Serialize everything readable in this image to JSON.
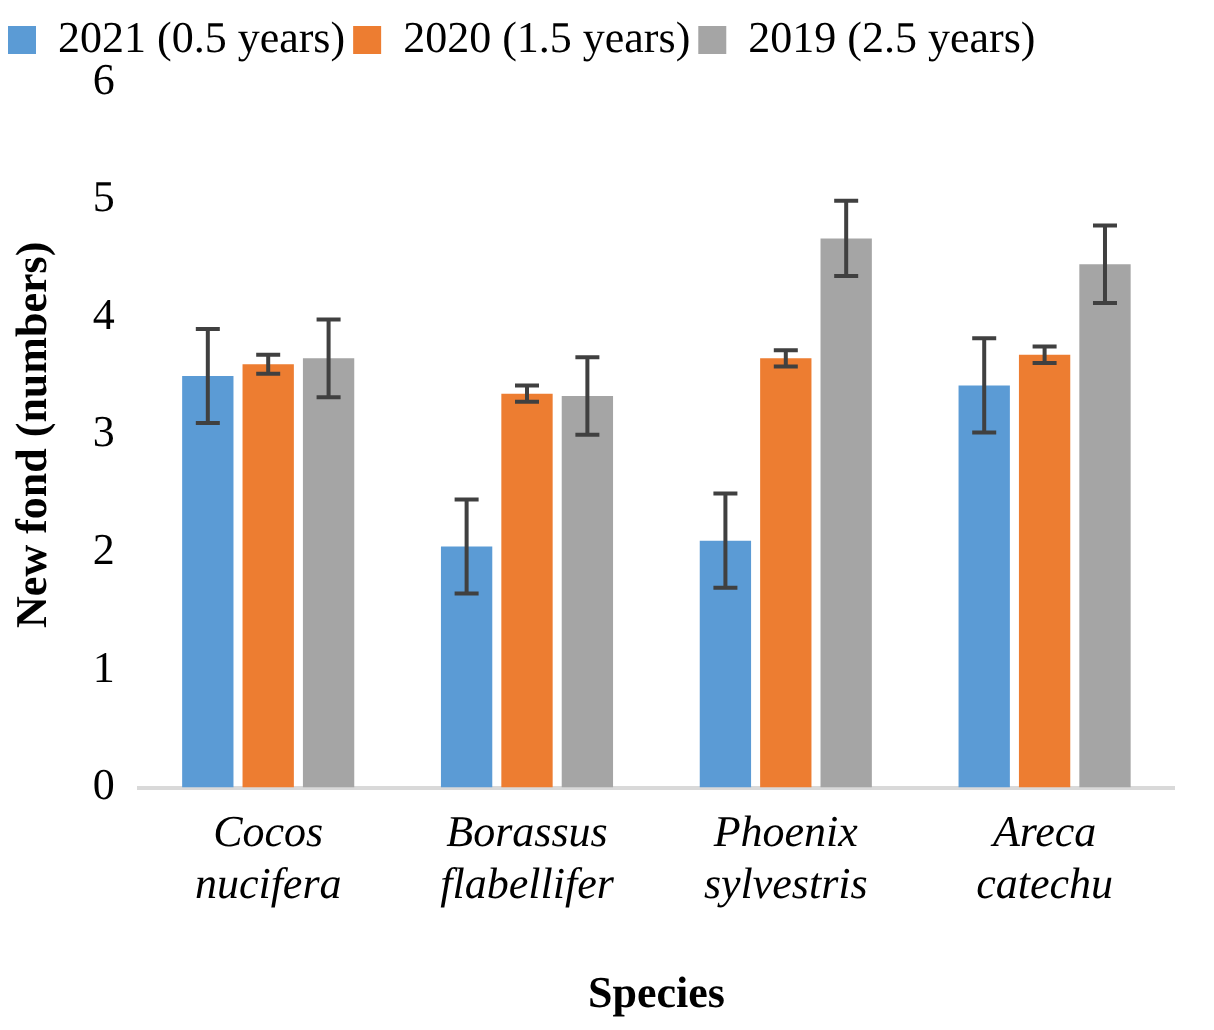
{
  "chart_data": {
    "type": "bar",
    "xlabel": "Species",
    "ylabel": "New fond (numbers)",
    "categories": [
      "Cocos nucifera",
      "Borassus flabellifer",
      "Phoenix sylvestris",
      "Areca catechu"
    ],
    "series": [
      {
        "name": "2021 (0.5 years)",
        "color": "#5b9bd5",
        "values": [
          3.5,
          2.05,
          2.1,
          3.42
        ],
        "errors": [
          0.4,
          0.4,
          0.4,
          0.4
        ]
      },
      {
        "name": "2020 (1.5 years)",
        "color": "#ed7d31",
        "values": [
          3.6,
          3.35,
          3.65,
          3.68
        ],
        "errors": [
          0.08,
          0.07,
          0.07,
          0.07
        ]
      },
      {
        "name": "2019 (2.5 years)",
        "color": "#a5a5a5",
        "values": [
          3.65,
          3.33,
          4.67,
          4.45
        ],
        "errors": [
          0.33,
          0.33,
          0.32,
          0.33
        ]
      }
    ],
    "ylim": [
      0,
      6
    ],
    "yticks": [
      0,
      1,
      2,
      3,
      4,
      5,
      6
    ],
    "grid": false,
    "legend": "top left"
  }
}
